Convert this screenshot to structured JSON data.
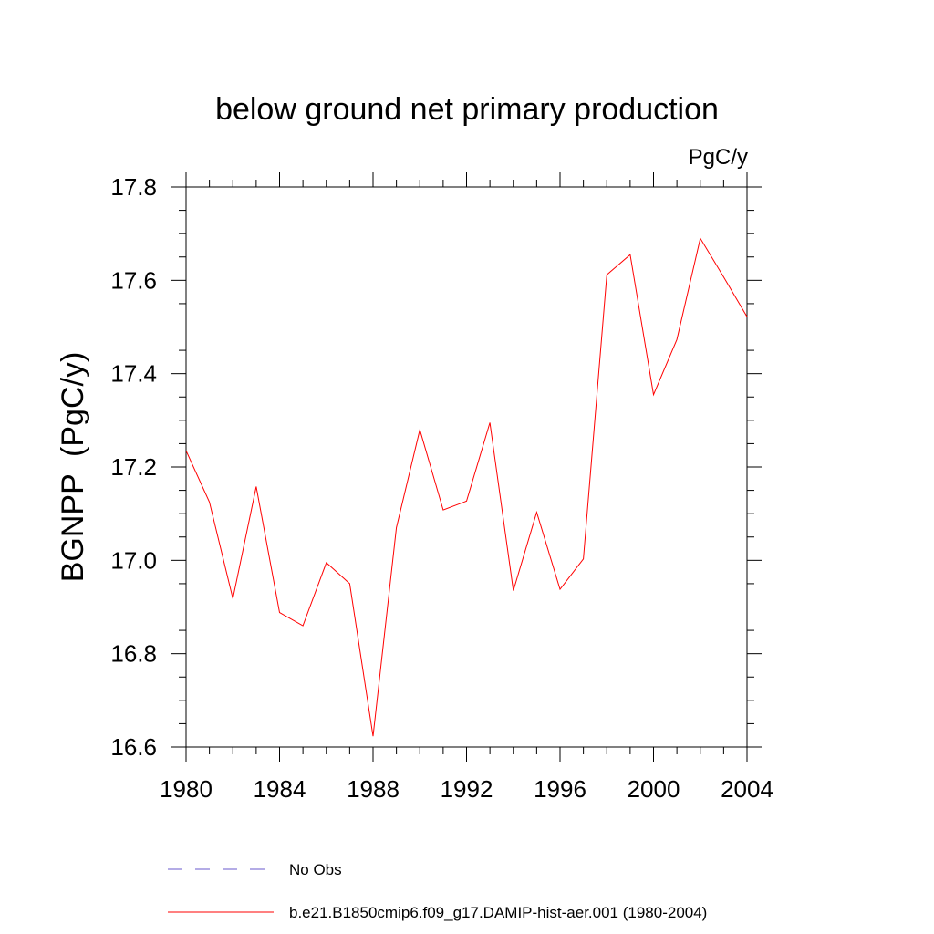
{
  "chart_data": {
    "type": "line",
    "title": "below ground net primary production",
    "units_label": "PgC/y",
    "ylabel": "BGNPP  (PgC/y)",
    "xlabel": "",
    "xlim": [
      1980,
      2004
    ],
    "ylim": [
      16.6,
      17.8
    ],
    "x_ticks": [
      1980,
      1984,
      1988,
      1992,
      1996,
      2000,
      2004
    ],
    "x_tick_labels": [
      "1980",
      "1984",
      "1988",
      "1992",
      "1996",
      "2000",
      "2004"
    ],
    "y_ticks": [
      16.6,
      16.8,
      17.0,
      17.2,
      17.4,
      17.6,
      17.8
    ],
    "y_tick_labels": [
      "16.6",
      "16.8",
      "17.0",
      "17.2",
      "17.4",
      "17.6",
      "17.8"
    ],
    "grid": false,
    "legend_position": "bottom",
    "series": [
      {
        "name": "b.e21.B1850cmip6.f09_g17.DAMIP-hist-aer.001 (1980-2004)",
        "color": "#ff0000",
        "style": "solid",
        "x": [
          1980,
          1981,
          1982,
          1983,
          1984,
          1985,
          1986,
          1987,
          1988,
          1989,
          1990,
          1991,
          1992,
          1993,
          1994,
          1995,
          1996,
          1997,
          1998,
          1999,
          2000,
          2001,
          2002,
          2003,
          2004
        ],
        "y": [
          17.235,
          17.125,
          16.918,
          17.158,
          16.888,
          16.86,
          16.995,
          16.95,
          16.623,
          17.07,
          17.28,
          17.108,
          17.127,
          17.295,
          16.935,
          17.103,
          16.938,
          17.003,
          17.612,
          17.655,
          17.355,
          17.473,
          17.69,
          17.607,
          17.522
        ]
      }
    ],
    "legend": [
      {
        "label": "No Obs",
        "color": "#6a5acd",
        "style": "dashed"
      },
      {
        "label": "b.e21.B1850cmip6.f09_g17.DAMIP-hist-aer.001 (1980-2004)",
        "color": "#ff0000",
        "style": "solid"
      }
    ]
  }
}
